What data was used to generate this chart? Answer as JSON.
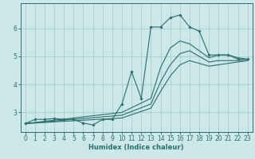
{
  "title": "",
  "xlabel": "Humidex (Indice chaleur)",
  "bg_color": "#cce8e8",
  "grid_color": "#aacccc",
  "line_color": "#2d6e6e",
  "xlim": [
    -0.5,
    23.5
  ],
  "ylim": [
    2.3,
    6.9
  ],
  "xticks": [
    0,
    1,
    2,
    3,
    4,
    5,
    6,
    7,
    8,
    9,
    10,
    11,
    12,
    13,
    14,
    15,
    16,
    17,
    18,
    19,
    20,
    21,
    22,
    23
  ],
  "yticks": [
    3,
    4,
    5,
    6
  ],
  "line_main": {
    "x": [
      0,
      1,
      2,
      3,
      4,
      5,
      6,
      7,
      8,
      9,
      10,
      11,
      12,
      13,
      14,
      15,
      16,
      17,
      18,
      19,
      20,
      21,
      22,
      23
    ],
    "y": [
      2.6,
      2.75,
      2.75,
      2.78,
      2.75,
      2.75,
      2.62,
      2.55,
      2.75,
      2.75,
      3.3,
      4.45,
      3.5,
      6.05,
      6.05,
      6.38,
      6.48,
      6.05,
      5.9,
      5.05,
      5.05,
      5.05,
      4.9,
      4.9
    ]
  },
  "line_smooth1": {
    "x": [
      0,
      10,
      13,
      14,
      15,
      16,
      17,
      18,
      19,
      20,
      21,
      22,
      23
    ],
    "y": [
      2.6,
      3.0,
      3.5,
      4.6,
      5.3,
      5.55,
      5.45,
      5.2,
      4.95,
      5.05,
      5.05,
      4.95,
      4.9
    ]
  },
  "line_smooth2": {
    "x": [
      0,
      10,
      13,
      14,
      15,
      16,
      17,
      18,
      19,
      20,
      21,
      22,
      23
    ],
    "y": [
      2.6,
      2.9,
      3.3,
      4.1,
      4.7,
      5.1,
      5.2,
      5.0,
      4.8,
      4.85,
      4.85,
      4.85,
      4.85
    ]
  },
  "line_smooth3": {
    "x": [
      0,
      10,
      13,
      14,
      15,
      16,
      17,
      18,
      19,
      20,
      21,
      22,
      23
    ],
    "y": [
      2.6,
      2.8,
      3.15,
      3.75,
      4.3,
      4.7,
      4.85,
      4.75,
      4.65,
      4.7,
      4.75,
      4.8,
      4.85
    ]
  }
}
